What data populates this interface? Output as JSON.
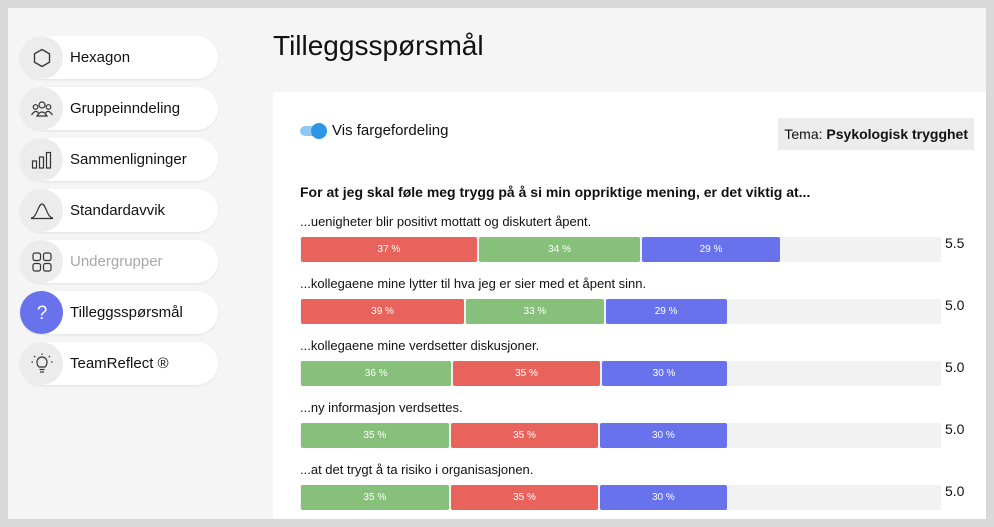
{
  "sidebar": {
    "items": [
      {
        "label": "Hexagon",
        "icon": "hexagon-icon"
      },
      {
        "label": "Gruppeinndeling",
        "icon": "people-group-icon"
      },
      {
        "label": "Sammenligninger",
        "icon": "bar-chart-icon"
      },
      {
        "label": "Standardavvik",
        "icon": "bell-curve-icon"
      },
      {
        "label": "Undergrupper",
        "icon": "grid-icon",
        "disabled": true
      },
      {
        "label": "Tilleggsspørsmål",
        "icon": "question-icon",
        "active": true
      },
      {
        "label": "TeamReflect ®",
        "icon": "lightbulb-icon"
      }
    ]
  },
  "page": {
    "title": "Tilleggsspørsmål"
  },
  "card": {
    "toggle": {
      "label": "Vis fargefordeling",
      "on": true
    },
    "theme": {
      "prefix": "Tema:",
      "value": "Psykologisk trygghet"
    },
    "question": "For at jeg skal føle meg trygg på å si min oppriktige mening, er det viktig at...",
    "items": [
      {
        "label": "...uenigheter blir positivt mottatt og diskutert åpent.",
        "score": "5.5",
        "segments": [
          {
            "color": "red",
            "value": 37,
            "text": "37 %"
          },
          {
            "color": "green",
            "value": 34,
            "text": "34 %"
          },
          {
            "color": "blue",
            "value": 29,
            "text": "29 %"
          }
        ],
        "bar_fill": 0.75
      },
      {
        "label": "...kollegaene mine lytter til hva jeg er sier med et åpent sinn.",
        "score": "5.0",
        "segments": [
          {
            "color": "red",
            "value": 39,
            "text": "39 %"
          },
          {
            "color": "green",
            "value": 33,
            "text": "33 %"
          },
          {
            "color": "blue",
            "value": 29,
            "text": "29 %"
          }
        ],
        "bar_fill": 0.667
      },
      {
        "label": "...kollegaene mine verdsetter diskusjoner.",
        "score": "5.0",
        "segments": [
          {
            "color": "green",
            "value": 36,
            "text": "36 %"
          },
          {
            "color": "red",
            "value": 35,
            "text": "35 %"
          },
          {
            "color": "blue",
            "value": 30,
            "text": "30 %"
          }
        ],
        "bar_fill": 0.667
      },
      {
        "label": "...ny informasjon verdsettes.",
        "score": "5.0",
        "segments": [
          {
            "color": "green",
            "value": 35,
            "text": "35 %"
          },
          {
            "color": "red",
            "value": 35,
            "text": "35 %"
          },
          {
            "color": "blue",
            "value": 30,
            "text": "30 %"
          }
        ],
        "bar_fill": 0.667
      },
      {
        "label": "...at det trygt å ta risiko i organisasjonen.",
        "score": "5.0",
        "segments": [
          {
            "color": "green",
            "value": 35,
            "text": "35 %"
          },
          {
            "color": "red",
            "value": 35,
            "text": "35 %"
          },
          {
            "color": "blue",
            "value": 30,
            "text": "30 %"
          }
        ],
        "bar_fill": 0.667
      }
    ]
  },
  "colors": {
    "accent": "#6872ec",
    "red": "#e8635c",
    "green": "#86c07b",
    "blue": "#6872ec",
    "toggle": "#2d96ea"
  }
}
